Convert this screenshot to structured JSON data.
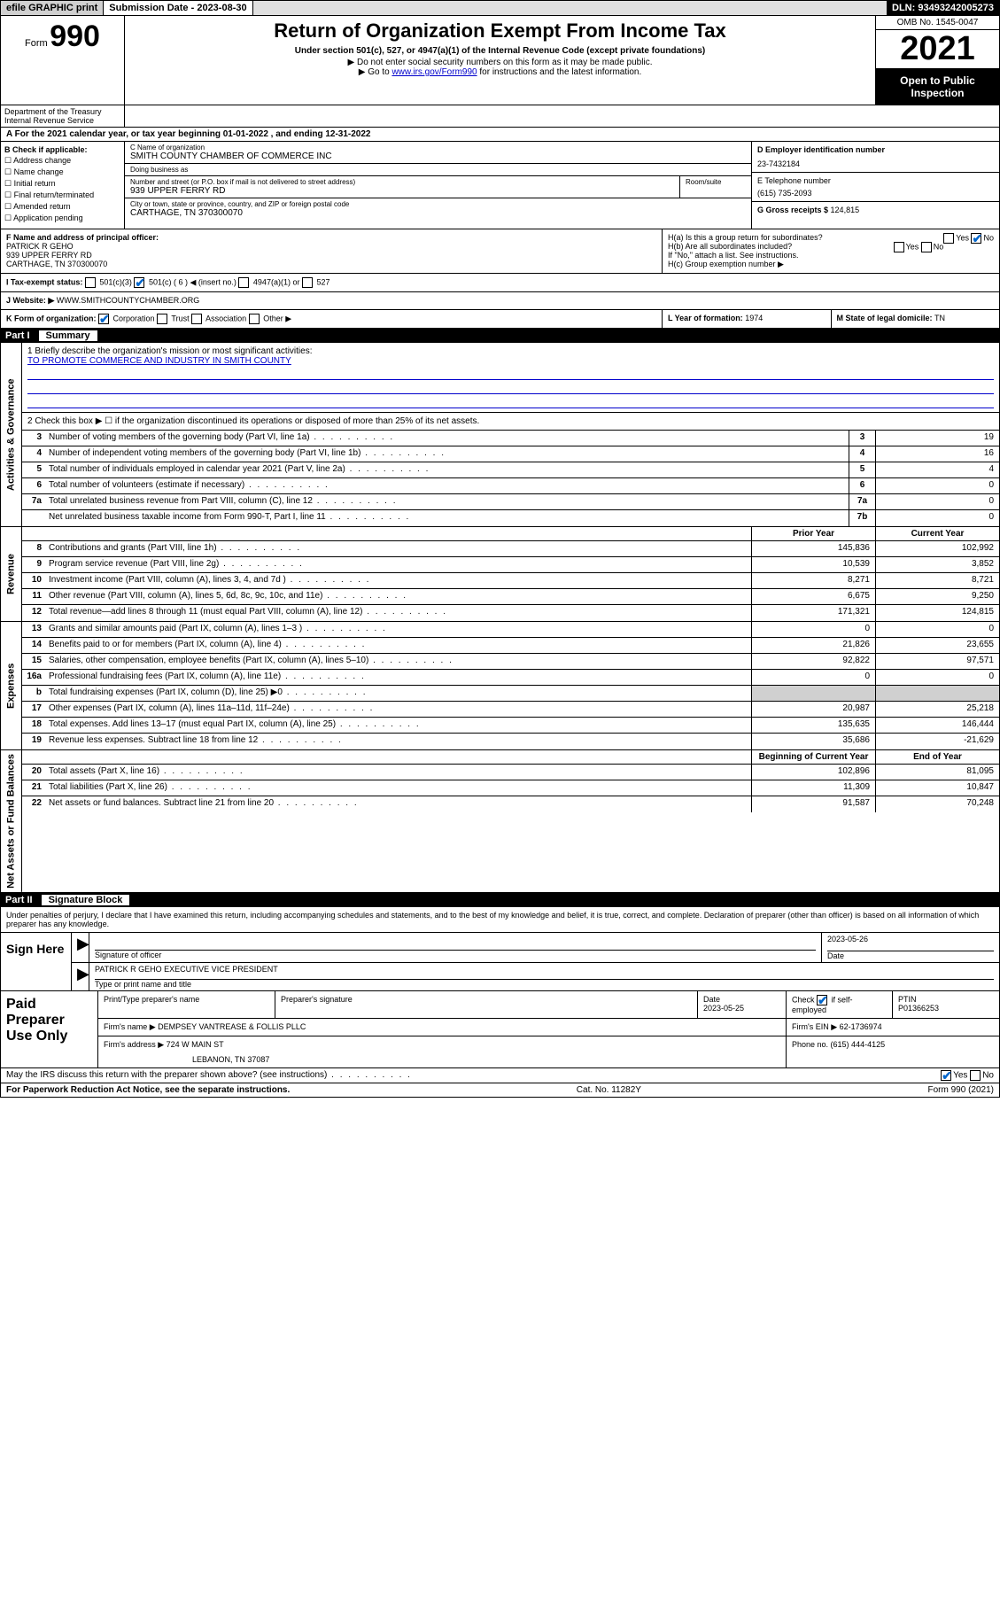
{
  "topbar": {
    "efile": "efile GRAPHIC print",
    "submission_label": "Submission Date - ",
    "submission_date": "2023-08-30",
    "dln_label": "DLN: ",
    "dln": "93493242005273"
  },
  "header": {
    "form_prefix": "Form",
    "form_num": "990",
    "dept": "Department of the Treasury\nInternal Revenue Service",
    "title": "Return of Organization Exempt From Income Tax",
    "sub1": "Under section 501(c), 527, or 4947(a)(1) of the Internal Revenue Code (except private foundations)",
    "sub2": "▶ Do not enter social security numbers on this form as it may be made public.",
    "sub3_pre": "▶ Go to ",
    "sub3_link": "www.irs.gov/Form990",
    "sub3_post": " for instructions and the latest information.",
    "omb": "OMB No. 1545-0047",
    "year": "2021",
    "open": "Open to Public Inspection"
  },
  "sec_a": {
    "label": "A For the 2021 calendar year, or tax year beginning ",
    "begin": "01-01-2022",
    "mid": " , and ending ",
    "end": "12-31-2022"
  },
  "block_b": {
    "check_label": "B Check if applicable:",
    "opts": [
      "Address change",
      "Name change",
      "Initial return",
      "Final return/terminated",
      "Amended return",
      "Application pending"
    ],
    "c_name_lbl": "C Name of organization",
    "c_name": "SMITH COUNTY CHAMBER OF COMMERCE INC",
    "dba_lbl": "Doing business as",
    "dba": "",
    "addr_lbl": "Number and street (or P.O. box if mail is not delivered to street address)",
    "room_lbl": "Room/suite",
    "addr": "939 UPPER FERRY RD",
    "city_lbl": "City or town, state or province, country, and ZIP or foreign postal code",
    "city": "CARTHAGE, TN 370300070",
    "d_lbl": "D Employer identification number",
    "d_val": "23-7432184",
    "e_lbl": "E Telephone number",
    "e_val": "(615) 735-2093",
    "g_lbl": "G Gross receipts $ ",
    "g_val": "124,815"
  },
  "row_f": {
    "f_lbl": "F Name and address of principal officer:",
    "f_name": "PATRICK R GEHO",
    "f_addr1": "939 UPPER FERRY RD",
    "f_addr2": "CARTHAGE, TN 370300070",
    "ha_lbl": "H(a) Is this a group return for subordinates?",
    "ha_yes": "Yes",
    "ha_no": "No",
    "hb_lbl": "H(b) Are all subordinates included?",
    "hb_note": "If \"No,\" attach a list. See instructions.",
    "hc_lbl": "H(c) Group exemption number ▶"
  },
  "row_i": {
    "i_lbl": "I Tax-exempt status:",
    "i_501c3": "501(c)(3)",
    "i_501c": "501(c) ( 6 ) ◀ (insert no.)",
    "i_4947": "4947(a)(1) or",
    "i_527": "527"
  },
  "row_j": {
    "j_lbl": "J Website: ▶ ",
    "j_val": "WWW.SMITHCOUNTYCHAMBER.ORG"
  },
  "row_k": {
    "k_lbl": "K Form of organization:",
    "k_corp": "Corporation",
    "k_trust": "Trust",
    "k_assoc": "Association",
    "k_other": "Other ▶",
    "l_lbl": "L Year of formation: ",
    "l_val": "1974",
    "m_lbl": "M State of legal domicile: ",
    "m_val": "TN"
  },
  "part1": {
    "pnum": "Part I",
    "ptitle": "Summary",
    "side_gov": "Activities & Governance",
    "side_rev": "Revenue",
    "side_exp": "Expenses",
    "side_net": "Net Assets or Fund Balances",
    "mission_lbl": "1 Briefly describe the organization's mission or most significant activities:",
    "mission": "TO PROMOTE COMMERCE AND INDUSTRY IN SMITH COUNTY",
    "line2": "2 Check this box ▶ ☐ if the organization discontinued its operations or disposed of more than 25% of its net assets.",
    "rows_single": [
      {
        "n": "3",
        "d": "Number of voting members of the governing body (Part VI, line 1a)",
        "b": "3",
        "v": "19"
      },
      {
        "n": "4",
        "d": "Number of independent voting members of the governing body (Part VI, line 1b)",
        "b": "4",
        "v": "16"
      },
      {
        "n": "5",
        "d": "Total number of individuals employed in calendar year 2021 (Part V, line 2a)",
        "b": "5",
        "v": "4"
      },
      {
        "n": "6",
        "d": "Total number of volunteers (estimate if necessary)",
        "b": "6",
        "v": "0"
      },
      {
        "n": "7a",
        "d": "Total unrelated business revenue from Part VIII, column (C), line 12",
        "b": "7a",
        "v": "0"
      },
      {
        "n": "",
        "d": "Net unrelated business taxable income from Form 990-T, Part I, line 11",
        "b": "7b",
        "v": "0"
      }
    ],
    "col_prior": "Prior Year",
    "col_current": "Current Year",
    "rows_rev": [
      {
        "n": "8",
        "d": "Contributions and grants (Part VIII, line 1h)",
        "p": "145,836",
        "c": "102,992"
      },
      {
        "n": "9",
        "d": "Program service revenue (Part VIII, line 2g)",
        "p": "10,539",
        "c": "3,852"
      },
      {
        "n": "10",
        "d": "Investment income (Part VIII, column (A), lines 3, 4, and 7d )",
        "p": "8,271",
        "c": "8,721"
      },
      {
        "n": "11",
        "d": "Other revenue (Part VIII, column (A), lines 5, 6d, 8c, 9c, 10c, and 11e)",
        "p": "6,675",
        "c": "9,250"
      },
      {
        "n": "12",
        "d": "Total revenue—add lines 8 through 11 (must equal Part VIII, column (A), line 12)",
        "p": "171,321",
        "c": "124,815"
      }
    ],
    "rows_exp": [
      {
        "n": "13",
        "d": "Grants and similar amounts paid (Part IX, column (A), lines 1–3 )",
        "p": "0",
        "c": "0"
      },
      {
        "n": "14",
        "d": "Benefits paid to or for members (Part IX, column (A), line 4)",
        "p": "21,826",
        "c": "23,655"
      },
      {
        "n": "15",
        "d": "Salaries, other compensation, employee benefits (Part IX, column (A), lines 5–10)",
        "p": "92,822",
        "c": "97,571"
      },
      {
        "n": "16a",
        "d": "Professional fundraising fees (Part IX, column (A), line 11e)",
        "p": "0",
        "c": "0"
      },
      {
        "n": "b",
        "d": "Total fundraising expenses (Part IX, column (D), line 25) ▶0",
        "p": "",
        "c": "",
        "grey": true
      },
      {
        "n": "17",
        "d": "Other expenses (Part IX, column (A), lines 11a–11d, 11f–24e)",
        "p": "20,987",
        "c": "25,218"
      },
      {
        "n": "18",
        "d": "Total expenses. Add lines 13–17 (must equal Part IX, column (A), line 25)",
        "p": "135,635",
        "c": "146,444"
      },
      {
        "n": "19",
        "d": "Revenue less expenses. Subtract line 18 from line 12",
        "p": "35,686",
        "c": "-21,629"
      }
    ],
    "col_begin": "Beginning of Current Year",
    "col_end": "End of Year",
    "rows_net": [
      {
        "n": "20",
        "d": "Total assets (Part X, line 16)",
        "p": "102,896",
        "c": "81,095"
      },
      {
        "n": "21",
        "d": "Total liabilities (Part X, line 26)",
        "p": "11,309",
        "c": "10,847"
      },
      {
        "n": "22",
        "d": "Net assets or fund balances. Subtract line 21 from line 20",
        "p": "91,587",
        "c": "70,248"
      }
    ]
  },
  "part2": {
    "pnum": "Part II",
    "ptitle": "Signature Block",
    "decl": "Under penalties of perjury, I declare that I have examined this return, including accompanying schedules and statements, and to the best of my knowledge and belief, it is true, correct, and complete. Declaration of preparer (other than officer) is based on all information of which preparer has any knowledge.",
    "sign_here": "Sign Here",
    "sig_officer_lbl": "Signature of officer",
    "sig_date": "2023-05-26",
    "date_lbl": "Date",
    "sig_name": "PATRICK R GEHO EXECUTIVE VICE PRESIDENT",
    "sig_name_lbl": "Type or print name and title",
    "paid_prep": "Paid Preparer Use Only",
    "prep_name_lbl": "Print/Type preparer's name",
    "prep_sig_lbl": "Preparer's signature",
    "prep_date_lbl": "Date",
    "prep_date": "2023-05-25",
    "prep_check_lbl": "Check",
    "prep_self": "if self-employed",
    "ptin_lbl": "PTIN",
    "ptin": "P01366253",
    "firm_name_lbl": "Firm's name ▶ ",
    "firm_name": "DEMPSEY VANTREASE & FOLLIS PLLC",
    "firm_ein_lbl": "Firm's EIN ▶ ",
    "firm_ein": "62-1736974",
    "firm_addr_lbl": "Firm's address ▶ ",
    "firm_addr1": "724 W MAIN ST",
    "firm_addr2": "LEBANON, TN 37087",
    "phone_lbl": "Phone no. ",
    "phone": "(615) 444-4125",
    "irs_discuss": "May the IRS discuss this return with the preparer shown above? (see instructions)",
    "yes": "Yes",
    "no": "No"
  },
  "footer": {
    "paperwork": "For Paperwork Reduction Act Notice, see the separate instructions.",
    "cat": "Cat. No. 11282Y",
    "form": "Form 990 (2021)"
  }
}
